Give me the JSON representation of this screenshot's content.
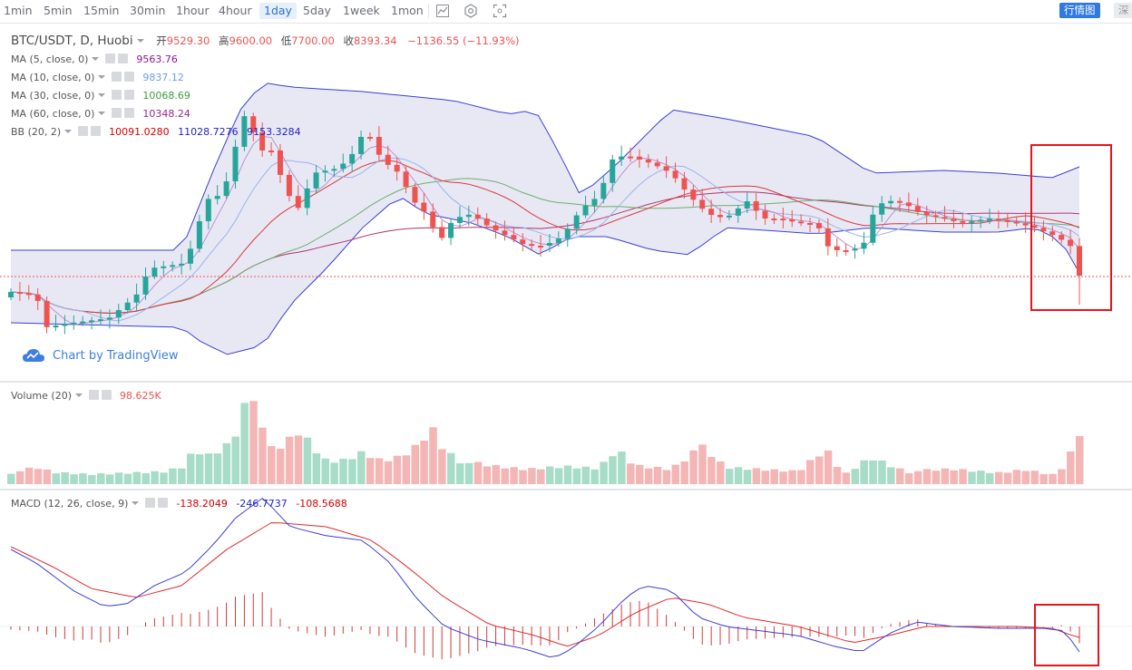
{
  "toolbar": {
    "timeframes": [
      "1min",
      "5min",
      "15min",
      "30min",
      "1hour",
      "4hour",
      "1day",
      "5day",
      "1week",
      "1mon"
    ],
    "active_timeframe": "1day",
    "right_buttons": [
      "行情图",
      "深"
    ]
  },
  "price_pane": {
    "symbol": "BTC/USDT, D, Huobi",
    "ohlc": {
      "open_label": "开",
      "open": "9529.30",
      "high_label": "高",
      "high": "9600.00",
      "low_label": "低",
      "low": "7700.00",
      "close_label": "收",
      "close": "8393.34",
      "change": "−1136.55 (−11.93%)"
    },
    "indicators": [
      {
        "label": "MA (5, close, 0)",
        "values": [
          "9563.76"
        ],
        "colors": [
          "#8e1599"
        ]
      },
      {
        "label": "MA (10, close, 0)",
        "values": [
          "9837.12"
        ],
        "colors": [
          "#6d9ee8"
        ]
      },
      {
        "label": "MA (30, close, 0)",
        "values": [
          "10068.69"
        ],
        "colors": [
          "#3d9c3d"
        ]
      },
      {
        "label": "MA (60, close, 0)",
        "values": [
          "10348.24"
        ],
        "colors": [
          "#a0228c"
        ]
      },
      {
        "label": "BB (20, 2)",
        "values": [
          "10091.0280",
          "11028.7276",
          "9153.3284"
        ],
        "colors": [
          "#d60000",
          "#1f23c6",
          "#1f23c6"
        ]
      }
    ],
    "watermark": "Chart by TradingView"
  },
  "volume_pane": {
    "label": "Volume (20)",
    "value": "98.625K"
  },
  "macd_pane": {
    "label": "MACD (12, 26, close, 9)",
    "values": [
      "-138.2049",
      "-246.7737",
      "-108.5688"
    ],
    "colors": [
      "#d60000",
      "#1f23c6",
      "#d60000"
    ]
  },
  "colors": {
    "up": "#26a69a",
    "down": "#ef5350",
    "bb_band": "#8c8fd6",
    "bb_fill": "#e6e6f4",
    "highlight": "#e8141a"
  }
}
